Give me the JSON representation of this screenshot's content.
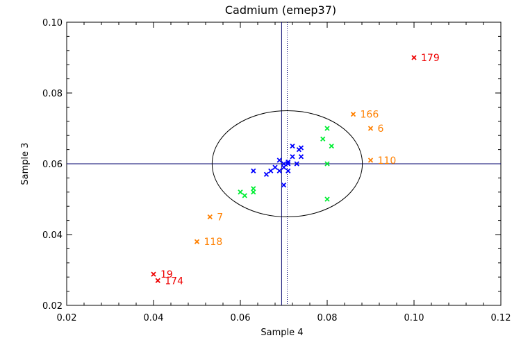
{
  "chart_data": {
    "type": "scatter",
    "title": "Cadmium (emep37)",
    "xlabel": "Sample 4",
    "ylabel": "Sample 3",
    "xlim": [
      0.02,
      0.12
    ],
    "ylim": [
      0.02,
      0.1
    ],
    "xticks": [
      0.02,
      0.04,
      0.06,
      0.08,
      0.1,
      0.12
    ],
    "yticks": [
      0.02,
      0.04,
      0.06,
      0.08,
      0.1
    ],
    "xtick_labels": [
      "0.02",
      "0.04",
      "0.06",
      "0.08",
      "0.10",
      "0.12"
    ],
    "ytick_labels": [
      "0.02",
      "0.04",
      "0.06",
      "0.08",
      "0.10"
    ],
    "reference_lines": {
      "vertical_solid": 0.0695,
      "vertical_dotted": 0.0708,
      "horizontal": 0.06
    },
    "ellipse": {
      "cx": 0.0708,
      "cy": 0.06,
      "rx": 0.0173,
      "ry": 0.015
    },
    "colors": {
      "blue": "#0000ff",
      "green": "#00ee33",
      "orange": "#ff8000",
      "red": "#ee0000",
      "ref_line": "#00006e"
    },
    "series": [
      {
        "name": "blue",
        "color": "#0000ff",
        "points": [
          [
            0.063,
            0.058
          ],
          [
            0.066,
            0.057
          ],
          [
            0.067,
            0.058
          ],
          [
            0.068,
            0.059
          ],
          [
            0.069,
            0.058
          ],
          [
            0.069,
            0.061
          ],
          [
            0.07,
            0.059
          ],
          [
            0.07,
            0.06
          ],
          [
            0.07,
            0.054
          ],
          [
            0.071,
            0.058
          ],
          [
            0.071,
            0.06
          ],
          [
            0.071,
            0.0605
          ],
          [
            0.072,
            0.062
          ],
          [
            0.072,
            0.065
          ],
          [
            0.073,
            0.06
          ],
          [
            0.0735,
            0.064
          ],
          [
            0.074,
            0.062
          ],
          [
            0.074,
            0.0645
          ]
        ]
      },
      {
        "name": "green",
        "color": "#00ee33",
        "points": [
          [
            0.06,
            0.052
          ],
          [
            0.061,
            0.051
          ],
          [
            0.063,
            0.052
          ],
          [
            0.063,
            0.053
          ],
          [
            0.079,
            0.067
          ],
          [
            0.08,
            0.07
          ],
          [
            0.08,
            0.06
          ],
          [
            0.08,
            0.05
          ],
          [
            0.081,
            0.065
          ]
        ]
      }
    ],
    "labeled_points": [
      {
        "x": 0.086,
        "y": 0.074,
        "label": "166",
        "color": "#ff8000"
      },
      {
        "x": 0.09,
        "y": 0.07,
        "label": "6",
        "color": "#ff8000"
      },
      {
        "x": 0.09,
        "y": 0.061,
        "label": "110",
        "color": "#ff8000"
      },
      {
        "x": 0.053,
        "y": 0.045,
        "label": "7",
        "color": "#ff8000"
      },
      {
        "x": 0.05,
        "y": 0.038,
        "label": "118",
        "color": "#ff8000"
      },
      {
        "x": 0.1,
        "y": 0.09,
        "label": "179",
        "color": "#ee0000"
      },
      {
        "x": 0.04,
        "y": 0.0288,
        "label": "19",
        "color": "#ee0000"
      },
      {
        "x": 0.041,
        "y": 0.027,
        "label": "174",
        "color": "#ee0000"
      }
    ]
  }
}
